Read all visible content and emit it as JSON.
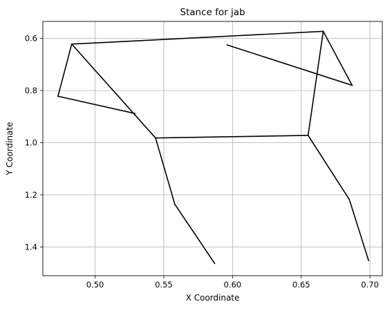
{
  "chart_data": {
    "type": "line",
    "title": "Stance for jab",
    "xlabel": "X Coordinate",
    "ylabel": "Y Coordinate",
    "xlim": [
      0.462,
      0.709
    ],
    "ylim": [
      1.51,
      0.535
    ],
    "y_inverted": true,
    "grid": true,
    "x_ticks": [
      0.5,
      0.55,
      0.6,
      0.65,
      0.7
    ],
    "x_tick_labels": [
      "0.50",
      "0.55",
      "0.60",
      "0.65",
      "0.70"
    ],
    "y_ticks": [
      0.6,
      0.8,
      1.0,
      1.2,
      1.4
    ],
    "y_tick_labels": [
      "0.6",
      "0.8",
      "1.0",
      "1.2",
      "1.4"
    ],
    "line_color": "#000000",
    "segments": [
      {
        "x": [
          0.483,
          0.666
        ],
        "y": [
          0.622,
          0.573
        ]
      },
      {
        "x": [
          0.666,
          0.687
        ],
        "y": [
          0.573,
          0.78
        ]
      },
      {
        "x": [
          0.687,
          0.596
        ],
        "y": [
          0.78,
          0.625
        ]
      },
      {
        "x": [
          0.483,
          0.473
        ],
        "y": [
          0.622,
          0.822
        ]
      },
      {
        "x": [
          0.473,
          0.529
        ],
        "y": [
          0.822,
          0.888
        ]
      },
      {
        "x": [
          0.483,
          0.544
        ],
        "y": [
          0.622,
          0.982
        ]
      },
      {
        "x": [
          0.666,
          0.655
        ],
        "y": [
          0.573,
          0.972
        ]
      },
      {
        "x": [
          0.544,
          0.655
        ],
        "y": [
          0.982,
          0.972
        ]
      },
      {
        "x": [
          0.544,
          0.558
        ],
        "y": [
          0.982,
          1.236
        ]
      },
      {
        "x": [
          0.558,
          0.587
        ],
        "y": [
          1.236,
          1.463
        ]
      },
      {
        "x": [
          0.655,
          0.685
        ],
        "y": [
          0.972,
          1.218
        ]
      },
      {
        "x": [
          0.685,
          0.699
        ],
        "y": [
          1.218,
          1.452
        ]
      }
    ]
  }
}
